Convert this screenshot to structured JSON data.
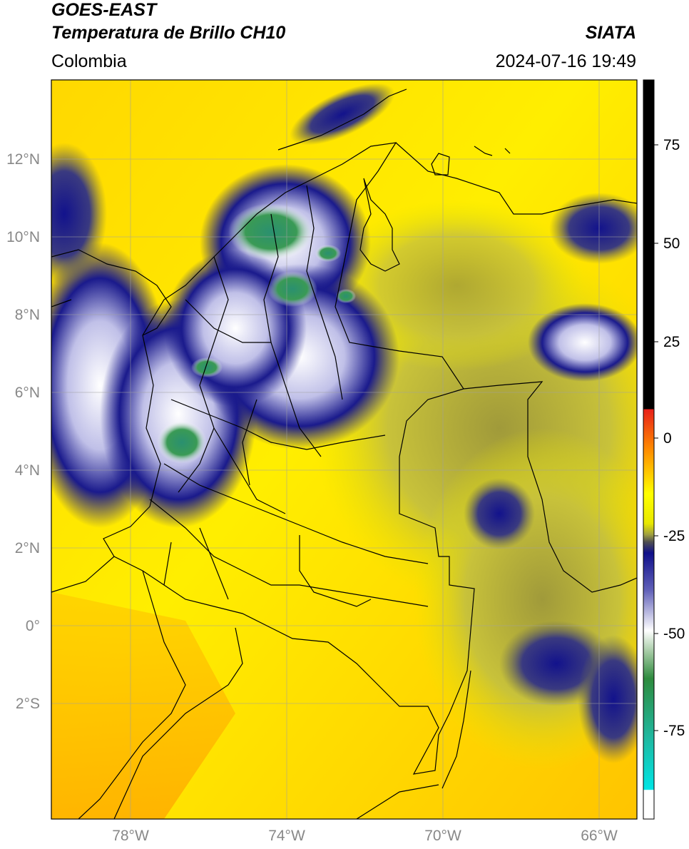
{
  "header": {
    "satellite": "GOES-EAST",
    "product": "Temperatura de Brillo CH10",
    "source": "SIATA",
    "region": "Colombia",
    "datetime": "2024-07-16 19:49"
  },
  "map": {
    "lat_labels": [
      "12°N",
      "10°N",
      "8°N",
      "6°N",
      "4°N",
      "2°N",
      "0°",
      "2°S"
    ],
    "lon_labels": [
      "78°W",
      "74°W",
      "70°W",
      "66°W"
    ],
    "gridlines": true
  },
  "colorbar": {
    "ticks": [
      "75",
      "50",
      "25",
      "0",
      "-25",
      "-50",
      "-75"
    ],
    "colors": {
      "black": "#000000",
      "red": "#e8201a",
      "orange": "#ff8c00",
      "yellow": "#ffff00",
      "olive": "#a0a040",
      "navy": "#10108a",
      "white": "#ffffff",
      "green": "#2e8b3e",
      "teal": "#1fb8a0",
      "cyan": "#00e5e5"
    }
  }
}
